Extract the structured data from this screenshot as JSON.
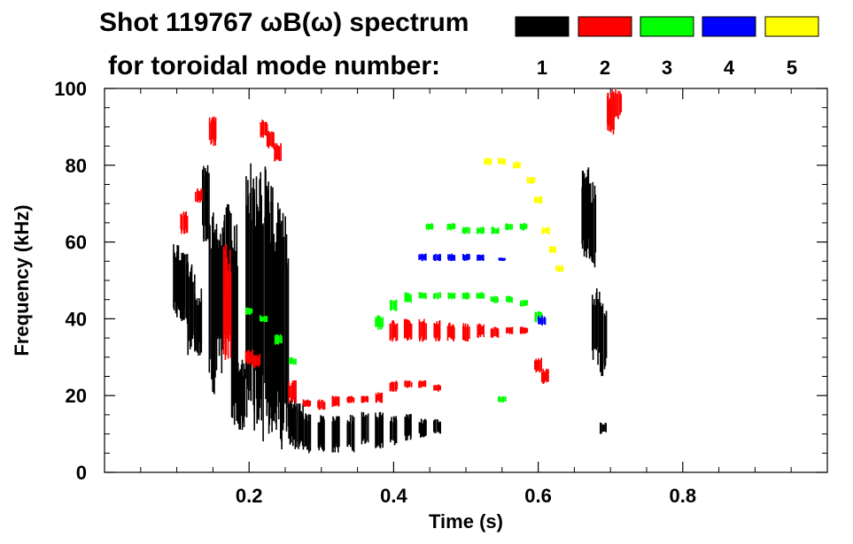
{
  "chart_data": {
    "type": "scatter",
    "title_line1": "Shot 119767 ωB(ω) spectrum",
    "title_line2": "for toroidal mode number:",
    "xlabel": "Time (s)",
    "ylabel": "Frequency (kHz)",
    "xlim": [
      0.0,
      1.0
    ],
    "ylim": [
      0,
      100
    ],
    "x_ticks": [
      {
        "value": 0.2,
        "label": "0.2"
      },
      {
        "value": 0.4,
        "label": "0.4"
      },
      {
        "value": 0.6,
        "label": "0.6"
      },
      {
        "value": 0.8,
        "label": "0.8"
      }
    ],
    "y_ticks": [
      {
        "value": 0,
        "label": "0"
      },
      {
        "value": 20,
        "label": "20"
      },
      {
        "value": 40,
        "label": "40"
      },
      {
        "value": 60,
        "label": "60"
      },
      {
        "value": 80,
        "label": "80"
      },
      {
        "value": 100,
        "label": "100"
      }
    ],
    "legend": {
      "placement": "top-right",
      "entries": [
        {
          "label": "1",
          "color": "#000000"
        },
        {
          "label": "2",
          "color": "#ff0000"
        },
        {
          "label": "3",
          "color": "#00ff00"
        },
        {
          "label": "4",
          "color": "#0000ff"
        },
        {
          "label": "5",
          "color": "#ffff00"
        }
      ]
    },
    "series": [
      {
        "name": "1",
        "color": "#000000",
        "bands": [
          [
            0.1,
            40,
            60
          ],
          [
            0.11,
            38,
            58
          ],
          [
            0.12,
            30,
            55
          ],
          [
            0.13,
            30,
            48
          ],
          [
            0.14,
            60,
            80
          ],
          [
            0.15,
            20,
            70
          ],
          [
            0.16,
            25,
            68
          ],
          [
            0.17,
            45,
            70
          ],
          [
            0.18,
            12,
            65
          ],
          [
            0.19,
            10,
            30
          ],
          [
            0.2,
            12,
            82
          ],
          [
            0.21,
            10,
            78
          ],
          [
            0.22,
            8,
            80
          ],
          [
            0.23,
            8,
            76
          ],
          [
            0.24,
            7,
            72
          ],
          [
            0.25,
            6,
            68
          ],
          [
            0.26,
            6,
            20
          ],
          [
            0.27,
            6,
            18
          ],
          [
            0.28,
            5,
            16
          ],
          [
            0.3,
            5,
            15
          ],
          [
            0.32,
            5,
            15
          ],
          [
            0.34,
            5,
            15
          ],
          [
            0.36,
            7,
            16
          ],
          [
            0.38,
            6,
            16
          ],
          [
            0.4,
            7,
            15
          ],
          [
            0.42,
            8,
            16
          ],
          [
            0.44,
            9,
            14
          ],
          [
            0.46,
            10,
            14
          ],
          [
            0.665,
            55,
            80
          ],
          [
            0.675,
            52,
            76
          ],
          [
            0.68,
            28,
            48
          ],
          [
            0.69,
            25,
            45
          ],
          [
            0.69,
            10,
            13
          ]
        ]
      },
      {
        "name": "2",
        "color": "#ff0000",
        "bands": [
          [
            0.11,
            62,
            68
          ],
          [
            0.13,
            70,
            74
          ],
          [
            0.15,
            85,
            93
          ],
          [
            0.17,
            28,
            60
          ],
          [
            0.2,
            28,
            32
          ],
          [
            0.21,
            27,
            31
          ],
          [
            0.22,
            87,
            92
          ],
          [
            0.23,
            84,
            89
          ],
          [
            0.24,
            81,
            86
          ],
          [
            0.26,
            18,
            24
          ],
          [
            0.28,
            17,
            19
          ],
          [
            0.3,
            16,
            19
          ],
          [
            0.32,
            17,
            20
          ],
          [
            0.34,
            18,
            20
          ],
          [
            0.36,
            18,
            20
          ],
          [
            0.38,
            18,
            21
          ],
          [
            0.4,
            21,
            24
          ],
          [
            0.42,
            22,
            24
          ],
          [
            0.44,
            22,
            24
          ],
          [
            0.46,
            21,
            23
          ],
          [
            0.4,
            34,
            40
          ],
          [
            0.42,
            34,
            40
          ],
          [
            0.44,
            34,
            40
          ],
          [
            0.46,
            34,
            40
          ],
          [
            0.48,
            34,
            39
          ],
          [
            0.5,
            34,
            39
          ],
          [
            0.52,
            35,
            39
          ],
          [
            0.54,
            35,
            38
          ],
          [
            0.56,
            36,
            38
          ],
          [
            0.58,
            36,
            38
          ],
          [
            0.6,
            26,
            30
          ],
          [
            0.61,
            23,
            27
          ],
          [
            0.7,
            88,
            100
          ],
          [
            0.71,
            92,
            100
          ]
        ]
      },
      {
        "name": "3",
        "color": "#00ff00",
        "bands": [
          [
            0.2,
            41,
            43
          ],
          [
            0.22,
            39,
            41
          ],
          [
            0.24,
            33,
            36
          ],
          [
            0.26,
            28,
            30
          ],
          [
            0.38,
            37,
            41
          ],
          [
            0.4,
            42,
            45
          ],
          [
            0.42,
            44,
            47
          ],
          [
            0.44,
            45,
            47
          ],
          [
            0.46,
            45,
            47
          ],
          [
            0.48,
            45,
            47
          ],
          [
            0.5,
            45,
            47
          ],
          [
            0.52,
            45,
            47
          ],
          [
            0.54,
            44,
            46
          ],
          [
            0.56,
            44,
            46
          ],
          [
            0.58,
            43,
            45
          ],
          [
            0.6,
            39,
            42
          ],
          [
            0.45,
            63,
            65
          ],
          [
            0.48,
            63,
            65
          ],
          [
            0.5,
            62,
            64
          ],
          [
            0.52,
            62,
            64
          ],
          [
            0.54,
            62,
            64
          ],
          [
            0.56,
            63,
            65
          ],
          [
            0.58,
            63,
            65
          ],
          [
            0.55,
            18,
            20
          ]
        ]
      },
      {
        "name": "4",
        "color": "#0000ff",
        "bands": [
          [
            0.44,
            55,
            57
          ],
          [
            0.46,
            55,
            57
          ],
          [
            0.48,
            55,
            57
          ],
          [
            0.5,
            55,
            57
          ],
          [
            0.52,
            55,
            57
          ],
          [
            0.55,
            55,
            56
          ],
          [
            0.605,
            38,
            41
          ]
        ]
      },
      {
        "name": "5",
        "color": "#ffff00",
        "bands": [
          [
            0.53,
            80,
            82
          ],
          [
            0.55,
            80,
            82
          ],
          [
            0.57,
            79,
            81
          ],
          [
            0.59,
            75,
            77
          ],
          [
            0.6,
            70,
            72
          ],
          [
            0.61,
            62,
            64
          ],
          [
            0.62,
            57,
            59
          ],
          [
            0.63,
            52,
            54
          ]
        ]
      }
    ]
  }
}
